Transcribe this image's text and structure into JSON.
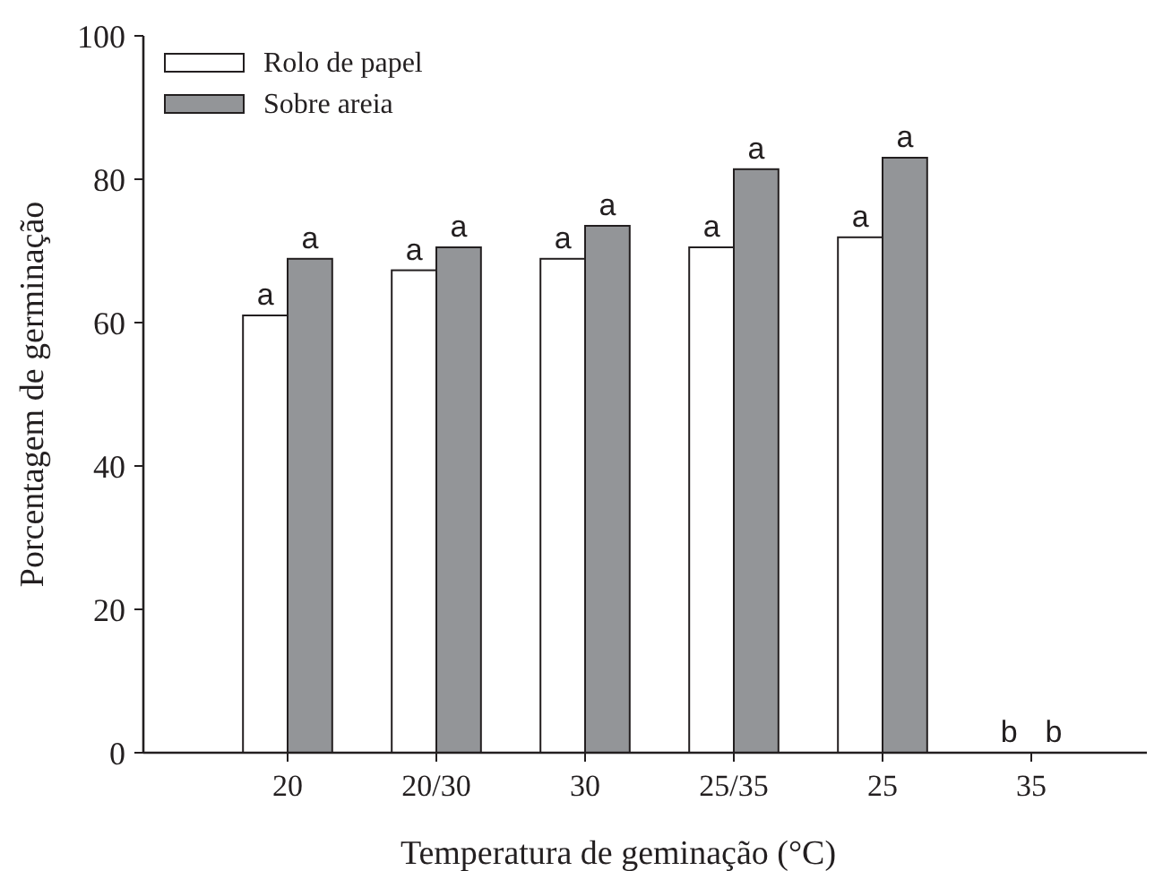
{
  "chart_data": {
    "type": "bar",
    "xlabel": "Temperatura de geminação (°C)",
    "ylabel": "Porcentagem de germinação",
    "categories": [
      "20",
      "20/30",
      "30",
      "25/35",
      "25",
      "35"
    ],
    "series": [
      {
        "name": "Rolo de papel",
        "color": "#ffffff",
        "values": [
          61,
          67.3,
          68.9,
          70.5,
          71.9,
          0
        ],
        "value_labels": [
          "a",
          "a",
          "a",
          "a",
          "a",
          "b"
        ]
      },
      {
        "name": "Sobre areia",
        "color": "#939598",
        "values": [
          68.9,
          70.5,
          73.5,
          81.4,
          83,
          0
        ],
        "value_labels": [
          "a",
          "a",
          "a",
          "a",
          "a",
          "b"
        ]
      }
    ],
    "ylim": [
      0,
      100
    ],
    "yticks": [
      0,
      20,
      40,
      60,
      80,
      100
    ],
    "grid": false,
    "legend": "top left"
  }
}
